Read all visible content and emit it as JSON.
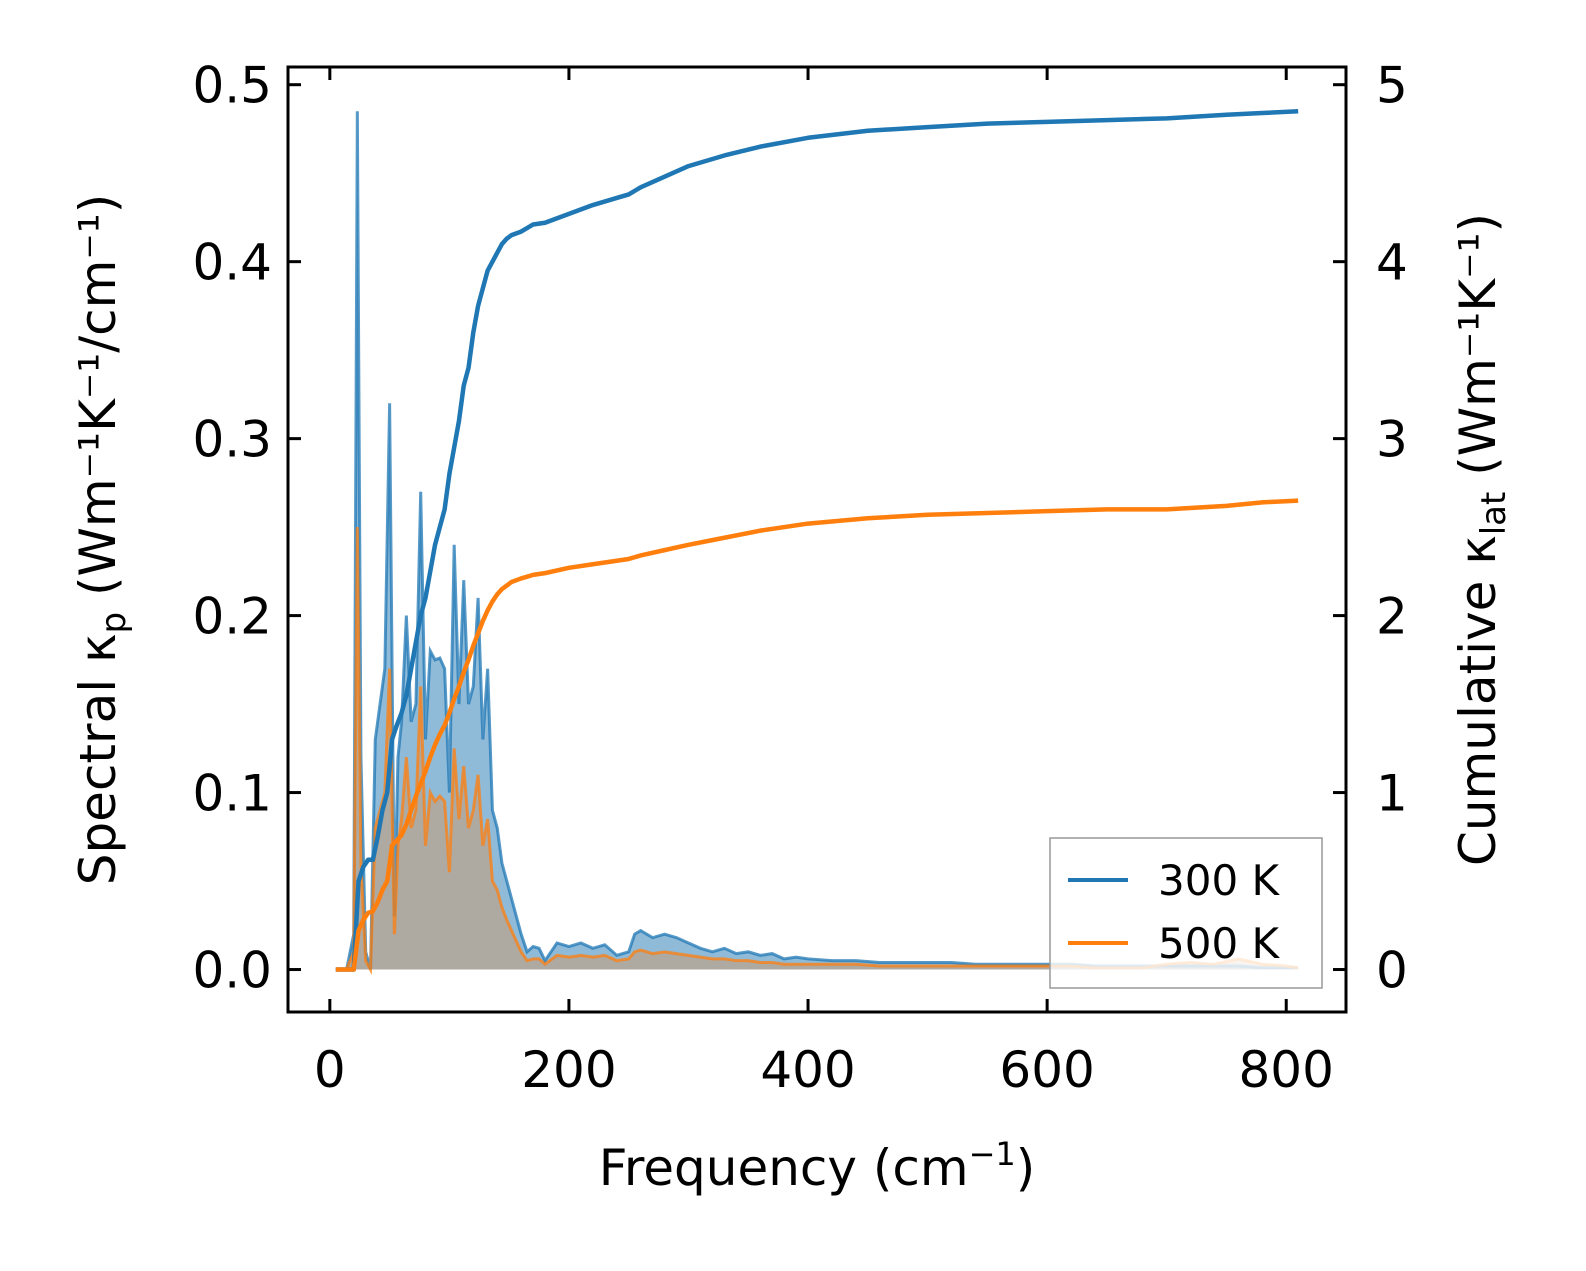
{
  "chart_data": {
    "type": "line",
    "title": "",
    "xlabel": "Frequency (cm",
    "xlabel_sup": "−1",
    "xlabel_tail": ")",
    "ylabel_left_prefix": "Spectral κ",
    "ylabel_left_sub": "p",
    "ylabel_left_suffix": " (Wm⁻¹K⁻¹/cm⁻¹)",
    "ylabel_right_prefix": "Cumulative κ",
    "ylabel_right_sub": "lat",
    "ylabel_right_suffix": " (Wm⁻¹K⁻¹)",
    "xlim": [
      -35,
      850
    ],
    "ylim_left": [
      -0.024,
      0.51
    ],
    "ylim_right": [
      -0.24,
      5.1
    ],
    "xticks": [
      0,
      200,
      400,
      600,
      800
    ],
    "xtick_labels": [
      "0",
      "200",
      "400",
      "600",
      "800"
    ],
    "yticks_left": [
      0.0,
      0.1,
      0.2,
      0.3,
      0.4,
      0.5
    ],
    "ytick_labels_left": [
      "0.0",
      "0.1",
      "0.2",
      "0.3",
      "0.4",
      "0.5"
    ],
    "yticks_right": [
      0,
      1,
      2,
      3,
      4,
      5
    ],
    "ytick_labels_right": [
      "0",
      "1",
      "2",
      "3",
      "4",
      "5"
    ],
    "legend_position": "lower-right",
    "spectral": {
      "x": [
        5,
        14,
        20,
        23,
        26,
        30,
        34,
        38,
        42,
        46,
        50,
        54,
        57,
        60,
        64,
        68,
        72,
        76,
        80,
        84,
        88,
        92,
        96,
        100,
        104,
        108,
        112,
        116,
        120,
        124,
        128,
        132,
        136,
        140,
        144,
        148,
        152,
        156,
        160,
        165,
        170,
        175,
        180,
        190,
        200,
        210,
        220,
        230,
        240,
        250,
        255,
        260,
        270,
        280,
        290,
        300,
        310,
        320,
        330,
        340,
        350,
        360,
        370,
        380,
        390,
        400,
        420,
        440,
        460,
        480,
        500,
        520,
        540,
        560,
        580,
        600,
        620,
        640,
        660,
        680,
        700,
        720,
        740,
        760,
        780,
        800,
        810
      ],
      "series": [
        {
          "name": "300 K",
          "color": "#1f77b4",
          "fill": "#1f77b4",
          "values": [
            0,
            0,
            0.02,
            0.485,
            0.12,
            0.01,
            0.0,
            0.13,
            0.15,
            0.17,
            0.32,
            0.03,
            0.12,
            0.14,
            0.2,
            0.14,
            0.15,
            0.27,
            0.13,
            0.18,
            0.175,
            0.176,
            0.17,
            0.1,
            0.24,
            0.15,
            0.22,
            0.15,
            0.16,
            0.21,
            0.13,
            0.17,
            0.09,
            0.08,
            0.06,
            0.05,
            0.04,
            0.03,
            0.02,
            0.01,
            0.013,
            0.012,
            0.005,
            0.015,
            0.013,
            0.015,
            0.012,
            0.014,
            0.008,
            0.01,
            0.02,
            0.022,
            0.018,
            0.02,
            0.018,
            0.015,
            0.012,
            0.01,
            0.012,
            0.009,
            0.01,
            0.008,
            0.009,
            0.006,
            0.007,
            0.006,
            0.005,
            0.005,
            0.004,
            0.004,
            0.004,
            0.004,
            0.003,
            0.003,
            0.003,
            0.003,
            0.003,
            0.002,
            0.002,
            0.002,
            0.002,
            0.002,
            0.002,
            0.002,
            0.001,
            0.001,
            0.001
          ]
        },
        {
          "name": "500 K",
          "color": "#ff7f0e",
          "fill": "#c89a73",
          "values": [
            0,
            0,
            0.01,
            0.25,
            0.06,
            0.005,
            0.0,
            0.08,
            0.09,
            0.1,
            0.17,
            0.02,
            0.07,
            0.085,
            0.12,
            0.08,
            0.09,
            0.16,
            0.07,
            0.1,
            0.095,
            0.098,
            0.095,
            0.055,
            0.125,
            0.085,
            0.115,
            0.08,
            0.09,
            0.11,
            0.07,
            0.085,
            0.05,
            0.045,
            0.035,
            0.028,
            0.022,
            0.016,
            0.01,
            0.005,
            0.006,
            0.006,
            0.003,
            0.008,
            0.007,
            0.008,
            0.007,
            0.008,
            0.005,
            0.006,
            0.01,
            0.011,
            0.009,
            0.01,
            0.009,
            0.008,
            0.007,
            0.006,
            0.006,
            0.005,
            0.005,
            0.004,
            0.004,
            0.003,
            0.003,
            0.003,
            0.003,
            0.003,
            0.002,
            0.002,
            0.002,
            0.002,
            0.002,
            0.002,
            0.002,
            0.002,
            0.002,
            0.001,
            0.001,
            0.001,
            0.003,
            0.004,
            0.003,
            0.006,
            0.003,
            0.002,
            0.001
          ]
        }
      ]
    },
    "cumulative": {
      "x": [
        5,
        20,
        24,
        28,
        32,
        36,
        40,
        44,
        48,
        52,
        56,
        60,
        64,
        68,
        72,
        76,
        80,
        84,
        88,
        92,
        96,
        100,
        104,
        108,
        112,
        116,
        120,
        124,
        128,
        132,
        136,
        140,
        144,
        148,
        152,
        156,
        160,
        165,
        170,
        180,
        200,
        220,
        240,
        250,
        260,
        280,
        300,
        330,
        360,
        400,
        450,
        500,
        550,
        600,
        650,
        700,
        750,
        780,
        810
      ],
      "series": [
        {
          "name": "300 K",
          "color": "#1f77b4",
          "values": [
            0,
            0,
            0.5,
            0.58,
            0.62,
            0.62,
            0.75,
            0.9,
            1.0,
            1.3,
            1.38,
            1.45,
            1.55,
            1.7,
            1.85,
            2.0,
            2.1,
            2.25,
            2.4,
            2.5,
            2.6,
            2.8,
            2.95,
            3.1,
            3.3,
            3.4,
            3.6,
            3.75,
            3.85,
            3.95,
            4.0,
            4.05,
            4.1,
            4.13,
            4.15,
            4.16,
            4.17,
            4.19,
            4.21,
            4.22,
            4.27,
            4.32,
            4.36,
            4.38,
            4.42,
            4.48,
            4.54,
            4.6,
            4.65,
            4.7,
            4.74,
            4.76,
            4.78,
            4.79,
            4.8,
            4.81,
            4.83,
            4.84,
            4.85
          ]
        },
        {
          "name": "500 K",
          "color": "#ff7f0e",
          "values": [
            0,
            0,
            0.22,
            0.28,
            0.32,
            0.33,
            0.38,
            0.45,
            0.5,
            0.7,
            0.73,
            0.76,
            0.82,
            0.9,
            0.98,
            1.05,
            1.12,
            1.2,
            1.27,
            1.33,
            1.38,
            1.45,
            1.53,
            1.6,
            1.68,
            1.75,
            1.83,
            1.9,
            1.97,
            2.03,
            2.08,
            2.12,
            2.15,
            2.17,
            2.19,
            2.2,
            2.21,
            2.22,
            2.23,
            2.24,
            2.27,
            2.29,
            2.31,
            2.32,
            2.34,
            2.37,
            2.4,
            2.44,
            2.48,
            2.52,
            2.55,
            2.57,
            2.58,
            2.59,
            2.6,
            2.6,
            2.62,
            2.64,
            2.65
          ]
        }
      ]
    },
    "legend": [
      {
        "label": "300 K",
        "color": "#1f77b4"
      },
      {
        "label": "500 K",
        "color": "#ff7f0e"
      }
    ]
  }
}
